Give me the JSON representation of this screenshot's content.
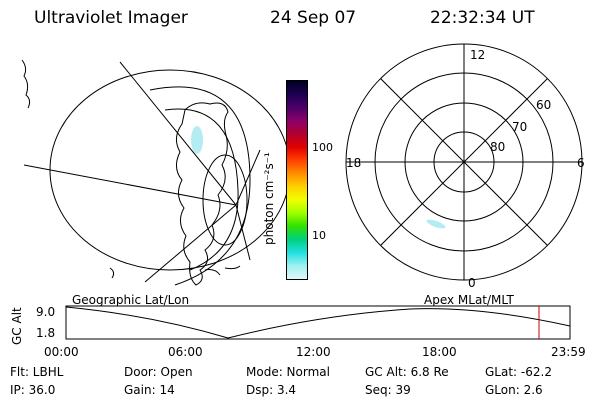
{
  "header": {
    "instrument": "Ultraviolet Imager",
    "date": "24 Sep 07",
    "time": "22:32:34 UT"
  },
  "colorbar": {
    "unit_label": "photon cm⁻²s⁻¹",
    "ticks": [
      "100",
      "10"
    ],
    "colors": [
      "#000022",
      "#1b0050",
      "#4b0068",
      "#8b006a",
      "#b00030",
      "#e00000",
      "#ff4000",
      "#ff8c00",
      "#ffd000",
      "#f0ff00",
      "#a0ff00",
      "#30e000",
      "#00d080",
      "#20e0e0",
      "#a0f0f0",
      "#e0f8f8"
    ]
  },
  "polar_plot": {
    "labels": {
      "top": "12",
      "right": "6",
      "left": "18",
      "bottom": "0"
    },
    "lat_labels": [
      "60",
      "70",
      "80"
    ]
  },
  "geo_label": "Geographic Lat/Lon",
  "apex_label": "Apex MLat/MLT",
  "altitude_plot": {
    "axis_label": "GC Alt",
    "y_ticks": [
      "9.0",
      "1.8"
    ],
    "x_ticks": [
      "00:00",
      "06:00",
      "12:00",
      "18:00",
      "23:59"
    ],
    "marker_color": "#cc0000"
  },
  "footer": {
    "filter": "Flt: LBHL",
    "door": "Door: Open",
    "mode": "Mode: Normal",
    "gc_alt": "GC Alt: 6.8 Re",
    "glat": "GLat: -62.2",
    "ip": "IP: 36.0",
    "gain": "Gain: 14",
    "dsp": "Dsp:   3.4",
    "seq": "Seq: 39",
    "glon": "GLon:  2.6"
  }
}
